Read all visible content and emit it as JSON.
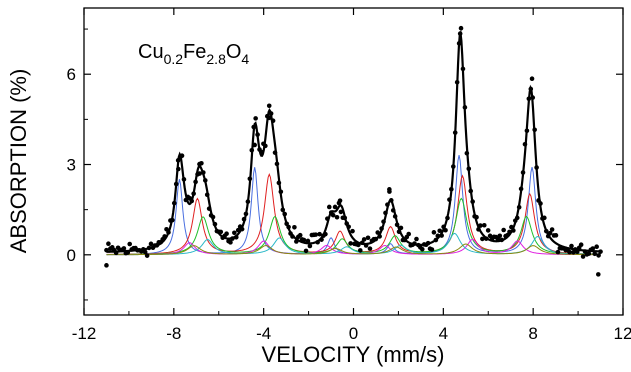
{
  "chart_data": {
    "type": "scatter",
    "title": "",
    "xlabel": "VELOCITY (mm/s)",
    "ylabel": "ABSORPTION (%)",
    "xlim": [
      -12,
      12
    ],
    "ylim": [
      -2,
      8.2
    ],
    "xticks": [
      -12,
      -8,
      -4,
      0,
      4,
      8,
      12
    ],
    "yticks": [
      0,
      3,
      6
    ],
    "grid": false,
    "legend": "none",
    "annotation": {
      "base": "Cu",
      "sub1": "0.2",
      "mid": "Fe",
      "sub2": "2.8",
      "end": "O",
      "sub3": "4"
    },
    "colors": {
      "points": "#000000",
      "fit": "#000000",
      "sextet_blue": "#4a6fe0",
      "sextet_red": "#e02020",
      "sextet_green": "#1fbf2a",
      "sextet_magenta": "#e020e0",
      "sextet_cyan": "#2ab8c8",
      "sextet_olive": "#8a8a10"
    },
    "series": [
      {
        "role": "fit-total",
        "peaks": [
          {
            "x": -7.75,
            "y": 2.55,
            "w": 0.22
          },
          {
            "x": -7.6,
            "y": 0.5,
            "w": 0.3
          },
          {
            "x": -6.9,
            "y": 1.85,
            "w": 0.28
          },
          {
            "x": -6.6,
            "y": 1.3,
            "w": 0.32
          },
          {
            "x": -4.4,
            "y": 3.05,
            "w": 0.22
          },
          {
            "x": -4.25,
            "y": 0.6,
            "w": 0.3
          },
          {
            "x": -3.75,
            "y": 3.5,
            "w": 0.28
          },
          {
            "x": -3.45,
            "y": 1.4,
            "w": 0.3
          },
          {
            "x": -1.0,
            "y": 0.85,
            "w": 0.26
          },
          {
            "x": -0.55,
            "y": 1.25,
            "w": 0.3
          },
          {
            "x": 1.65,
            "y": 1.65,
            "w": 0.32
          },
          {
            "x": 4.75,
            "y": 6.8,
            "w": 0.24
          },
          {
            "x": 5.05,
            "y": 0.8,
            "w": 0.32
          },
          {
            "x": 7.9,
            "y": 5.0,
            "w": 0.26
          },
          {
            "x": 7.6,
            "y": 0.8,
            "w": 0.32
          }
        ]
      },
      {
        "role": "sextet",
        "color": "#4a6fe0",
        "peaks": [
          {
            "x": -7.75,
            "y": 2.5,
            "w": 0.18
          },
          {
            "x": -4.4,
            "y": 2.9,
            "w": 0.18
          },
          {
            "x": -1.0,
            "y": 0.55,
            "w": 0.18
          },
          {
            "x": 1.65,
            "y": 0.35,
            "w": 0.18
          },
          {
            "x": 4.7,
            "y": 3.3,
            "w": 0.2
          },
          {
            "x": 7.95,
            "y": 2.9,
            "w": 0.2
          }
        ]
      },
      {
        "role": "sextet",
        "color": "#e02020",
        "peaks": [
          {
            "x": -6.95,
            "y": 1.85,
            "w": 0.26
          },
          {
            "x": -3.75,
            "y": 2.65,
            "w": 0.26
          },
          {
            "x": -0.6,
            "y": 0.75,
            "w": 0.26
          },
          {
            "x": 1.65,
            "y": 0.9,
            "w": 0.26
          },
          {
            "x": 4.85,
            "y": 2.6,
            "w": 0.26
          },
          {
            "x": 7.85,
            "y": 2.0,
            "w": 0.26
          }
        ]
      },
      {
        "role": "sextet",
        "color": "#1fbf2a",
        "peaks": [
          {
            "x": -6.7,
            "y": 1.25,
            "w": 0.3
          },
          {
            "x": -3.5,
            "y": 1.25,
            "w": 0.3
          },
          {
            "x": -0.5,
            "y": 0.5,
            "w": 0.3
          },
          {
            "x": 1.85,
            "y": 0.6,
            "w": 0.3
          },
          {
            "x": 4.8,
            "y": 1.85,
            "w": 0.3
          },
          {
            "x": 7.7,
            "y": 1.25,
            "w": 0.3
          }
        ]
      },
      {
        "role": "sextet",
        "color": "#e020e0",
        "peaks": [
          {
            "x": -7.3,
            "y": 0.4,
            "w": 0.3
          },
          {
            "x": -4.0,
            "y": 0.45,
            "w": 0.3
          },
          {
            "x": -1.2,
            "y": 0.3,
            "w": 0.3
          },
          {
            "x": 1.4,
            "y": 0.3,
            "w": 0.3
          },
          {
            "x": 5.3,
            "y": 0.5,
            "w": 0.3
          },
          {
            "x": 7.3,
            "y": 0.45,
            "w": 0.3
          }
        ]
      },
      {
        "role": "sextet",
        "color": "#2ab8c8",
        "peaks": [
          {
            "x": -6.5,
            "y": 0.5,
            "w": 0.32
          },
          {
            "x": -3.3,
            "y": 0.55,
            "w": 0.32
          },
          {
            "x": -0.3,
            "y": 0.25,
            "w": 0.32
          },
          {
            "x": 2.1,
            "y": 0.3,
            "w": 0.32
          },
          {
            "x": 4.5,
            "y": 0.7,
            "w": 0.32
          },
          {
            "x": 8.2,
            "y": 0.6,
            "w": 0.32
          }
        ]
      },
      {
        "role": "sextet",
        "color": "#8a8a10",
        "peaks": [
          {
            "x": -7.1,
            "y": 0.3,
            "w": 0.35
          },
          {
            "x": -3.9,
            "y": 0.3,
            "w": 0.35
          },
          {
            "x": -0.8,
            "y": 0.2,
            "w": 0.35
          },
          {
            "x": 1.9,
            "y": 0.25,
            "w": 0.35
          },
          {
            "x": 5.0,
            "y": 0.35,
            "w": 0.35
          },
          {
            "x": 8.0,
            "y": 0.3,
            "w": 0.35
          }
        ]
      }
    ],
    "data_points": {
      "x_start": -11.0,
      "x_end": 11.0,
      "count": 256,
      "extra_points": [
        [
          4.75,
          7.35
        ],
        [
          7.95,
          5.85
        ],
        [
          -3.75,
          4.55
        ],
        [
          -4.4,
          3.65
        ],
        [
          -7.8,
          2.85
        ],
        [
          -6.85,
          2.7
        ],
        [
          1.6,
          2.1
        ],
        [
          -0.6,
          1.8
        ],
        [
          10.9,
          -0.65
        ],
        [
          -11.0,
          -0.35
        ]
      ]
    }
  }
}
